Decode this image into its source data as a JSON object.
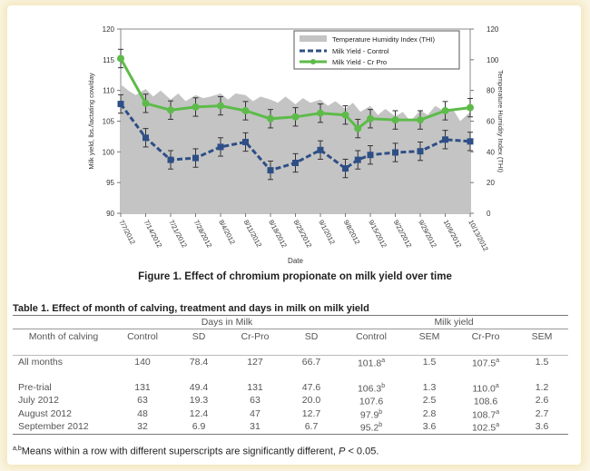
{
  "chart_data": {
    "type": "line",
    "title": "",
    "xlabel": "Date",
    "ylabel": "Milk yield, lbs./lactating cow/day",
    "y2label": "Temperature Humidity Index (THI)",
    "ylim": [
      90,
      120
    ],
    "y2lim": [
      0,
      120
    ],
    "yticks": [
      "90",
      "95",
      "100",
      "105",
      "110",
      "115",
      "120"
    ],
    "y2ticks": [
      "0",
      "20",
      "40",
      "60",
      "80",
      "100",
      "120"
    ],
    "x_tick_labels": [
      "7/7/2012",
      "7/14/2012",
      "7/21/2012",
      "7/28/2012",
      "8/4/2012",
      "8/11/2012",
      "8/18/2012",
      "8/25/2012",
      "9/1/2012",
      "9/8/2012",
      "9/15/2012",
      "9/22/2012",
      "9/29/2012",
      "10/6/2012",
      "10/13/2012"
    ],
    "legend_position": "top-right",
    "series": [
      {
        "name": "Temperature Humidity Index (THI)",
        "kind": "area",
        "color": "#c4c4c4",
        "x": [
          0,
          0.3,
          0.6,
          1.0,
          1.3,
          1.6,
          2.0,
          2.3,
          2.6,
          3.0,
          3.3,
          3.6,
          4.0,
          4.3,
          4.6,
          5.0,
          5.3,
          5.6,
          6.0,
          6.3,
          6.6,
          7.0,
          7.3,
          7.6,
          8.0,
          8.3,
          8.6,
          9.0,
          9.3,
          9.6,
          10.0,
          10.3,
          10.6,
          11.0,
          11.3,
          11.6,
          12.0,
          12.3,
          12.6,
          13.0,
          13.3,
          13.6,
          14.0
        ],
        "values": [
          84,
          80,
          77,
          81,
          76,
          80,
          74,
          78,
          73,
          77,
          75,
          76,
          78,
          74,
          78,
          77,
          73,
          76,
          74,
          72,
          76,
          71,
          75,
          72,
          74,
          70,
          73,
          68,
          72,
          66,
          70,
          64,
          68,
          63,
          66,
          60,
          67,
          64,
          70,
          66,
          68,
          60,
          66
        ]
      },
      {
        "name": "Milk Yield - Control",
        "kind": "line",
        "color": "#2e4f86",
        "dashed": true,
        "x": [
          0,
          1,
          2,
          3,
          4,
          5,
          6,
          7,
          8,
          9,
          9.5,
          10,
          11,
          12,
          13,
          14
        ],
        "values": [
          107.8,
          102.3,
          98.7,
          99.0,
          100.8,
          101.6,
          97.0,
          98.2,
          100.3,
          97.3,
          98.7,
          99.5,
          99.9,
          100.1,
          102.0,
          101.7
        ],
        "error": [
          1.5,
          1.5,
          1.5,
          1.5,
          1.5,
          1.5,
          1.5,
          1.5,
          1.5,
          1.5,
          1.5,
          1.5,
          1.5,
          1.5,
          1.5,
          1.5
        ]
      },
      {
        "name": "Milk Yield - Cr Pro",
        "kind": "line",
        "color": "#5dbb4a",
        "dashed": false,
        "x": [
          0,
          1,
          2,
          3,
          4,
          5,
          6,
          7,
          8,
          9,
          9.5,
          10,
          11,
          12,
          13,
          14
        ],
        "values": [
          115.2,
          107.9,
          106.8,
          107.3,
          107.5,
          106.7,
          105.4,
          105.7,
          106.3,
          106.0,
          103.8,
          105.4,
          105.2,
          105.2,
          106.7,
          107.2
        ],
        "error": [
          1.5,
          1.5,
          1.5,
          1.5,
          1.5,
          1.5,
          1.5,
          1.5,
          1.5,
          1.5,
          1.5,
          1.5,
          1.5,
          1.5,
          1.5,
          1.5
        ]
      }
    ]
  },
  "figure_caption": "Figure 1. Effect of chromium propionate on milk yield over time",
  "table": {
    "title": "Table 1. Effect of month of calving, treatment and days in milk on milk yield",
    "group_days": "Days in Milk",
    "group_yield": "Milk yield",
    "headers": [
      "Month of calving",
      "Control",
      "SD",
      "Cr-Pro",
      "SD",
      "Control",
      "SEM",
      "Cr-Pro",
      "SEM"
    ],
    "rows": [
      {
        "label": "All months",
        "dim_control": "140",
        "dim_sd1": "78.4",
        "dim_crpro": "127",
        "dim_sd2": "66.7",
        "my_control": "101.8",
        "my_control_sup": "a",
        "my_sem1": "1.5",
        "my_crpro": "107.5",
        "my_crpro_sup": "a",
        "my_sem2": "1.5"
      },
      {
        "label": "Pre-trial",
        "dim_control": "131",
        "dim_sd1": "49.4",
        "dim_crpro": "131",
        "dim_sd2": "47.6",
        "my_control": "106.3",
        "my_control_sup": "b",
        "my_sem1": "1.3",
        "my_crpro": "110.0",
        "my_crpro_sup": "a",
        "my_sem2": "1.2"
      },
      {
        "label": "July 2012",
        "dim_control": "63",
        "dim_sd1": "19.3",
        "dim_crpro": "63",
        "dim_sd2": "20.0",
        "my_control": "107.6",
        "my_control_sup": "",
        "my_sem1": "2.5",
        "my_crpro": "108.6",
        "my_crpro_sup": "",
        "my_sem2": "2.6"
      },
      {
        "label": "August 2012",
        "dim_control": "48",
        "dim_sd1": "12.4",
        "dim_crpro": "47",
        "dim_sd2": "12.7",
        "my_control": "97.9",
        "my_control_sup": "b",
        "my_sem1": "2.8",
        "my_crpro": "108.7",
        "my_crpro_sup": "a",
        "my_sem2": "2.7"
      },
      {
        "label": "September 2012",
        "dim_control": "32",
        "dim_sd1": "6.9",
        "dim_crpro": "31",
        "dim_sd2": "6.7",
        "my_control": "95.2",
        "my_control_sup": "b",
        "my_sem1": "3.6",
        "my_crpro": "102.5",
        "my_crpro_sup": "a",
        "my_sem2": "3.6"
      }
    ],
    "footnote_sup": "a,b",
    "footnote_text": "Means within a row with different superscripts are significantly different, ",
    "footnote_p": "P",
    "footnote_tail": " < 0.05."
  }
}
